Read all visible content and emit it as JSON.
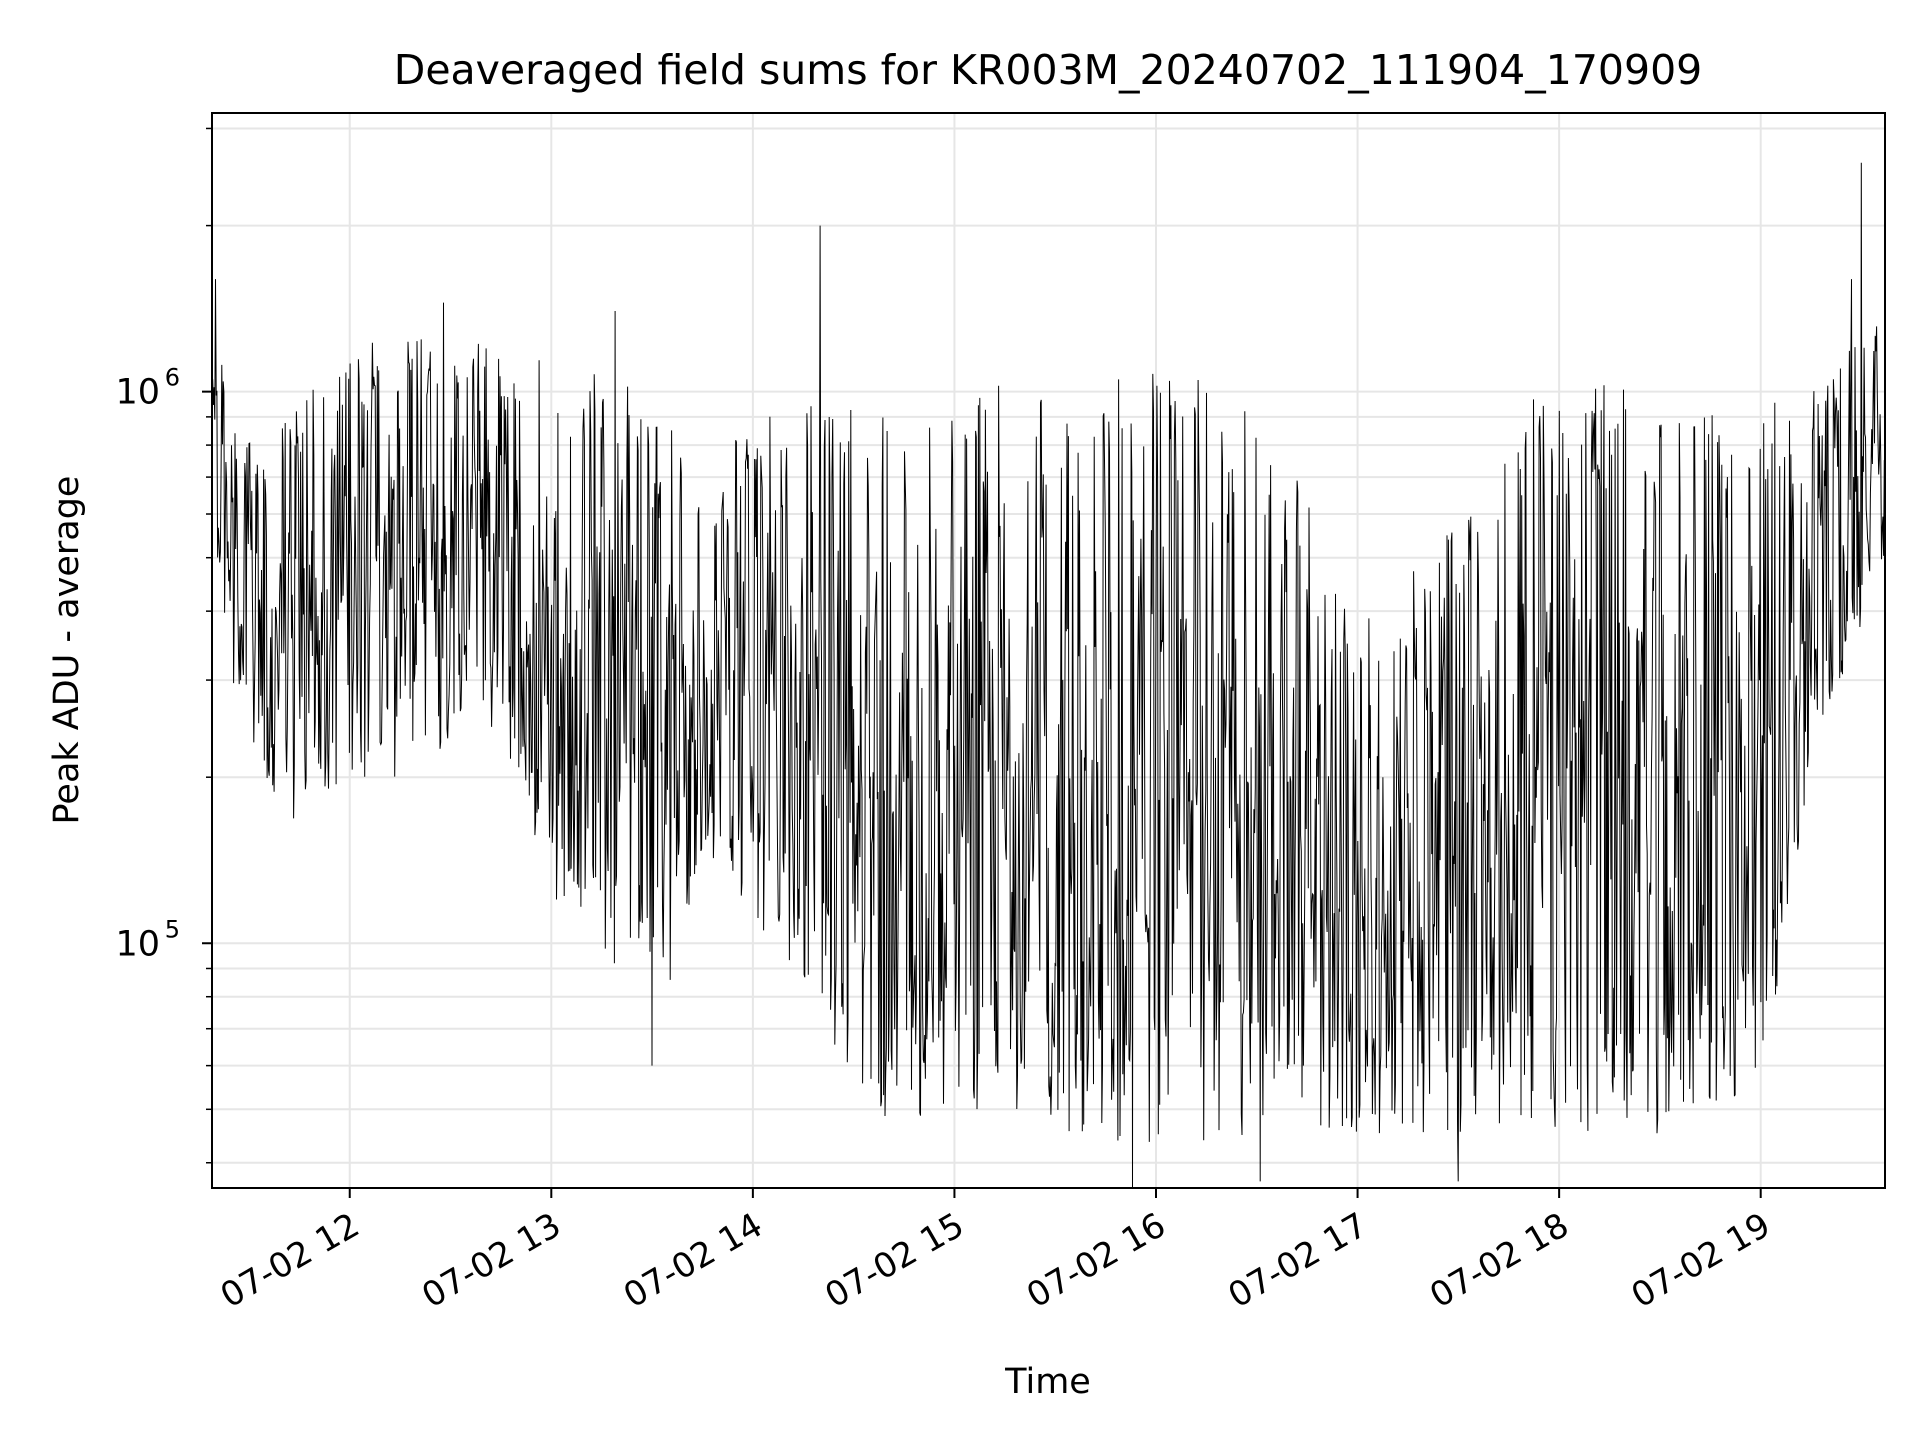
{
  "chart_data": {
    "type": "line",
    "title": "Deaveraged field sums for KR003M_20240702_111904_170909",
    "xlabel": "Time",
    "ylabel": "Peak ADU - average",
    "xlim": [
      "2024-07-02T11:19",
      "2024-07-02T19:37"
    ],
    "ylim": [
      36000,
      3200000
    ],
    "yscale": "log",
    "grid": true,
    "line_color": "#000000",
    "x_ticks": [
      {
        "t": "2024-07-02T12:00",
        "label": "07-02 12"
      },
      {
        "t": "2024-07-02T13:00",
        "label": "07-02 13"
      },
      {
        "t": "2024-07-02T14:00",
        "label": "07-02 14"
      },
      {
        "t": "2024-07-02T15:00",
        "label": "07-02 15"
      },
      {
        "t": "2024-07-02T16:00",
        "label": "07-02 16"
      },
      {
        "t": "2024-07-02T17:00",
        "label": "07-02 17"
      },
      {
        "t": "2024-07-02T18:00",
        "label": "07-02 18"
      },
      {
        "t": "2024-07-02T19:00",
        "label": "07-02 19"
      }
    ],
    "y_ticks": [
      {
        "value": 100000,
        "base": "10",
        "exp": "5"
      },
      {
        "value": 1000000,
        "base": "10",
        "exp": "6"
      }
    ],
    "envelope": [
      {
        "t": "2024-07-02T11:19",
        "low": 600000,
        "high": 1500000
      },
      {
        "t": "2024-07-02T11:25",
        "low": 300000,
        "high": 900000
      },
      {
        "t": "2024-07-02T11:35",
        "low": 200000,
        "high": 800000
      },
      {
        "t": "2024-07-02T11:45",
        "low": 150000,
        "high": 1000000
      },
      {
        "t": "2024-07-02T12:00",
        "low": 200000,
        "high": 1200000
      },
      {
        "t": "2024-07-02T12:20",
        "low": 200000,
        "high": 1300000
      },
      {
        "t": "2024-07-02T12:40",
        "low": 250000,
        "high": 1250000
      },
      {
        "t": "2024-07-02T13:00",
        "low": 120000,
        "high": 1200000
      },
      {
        "t": "2024-07-02T13:20",
        "low": 90000,
        "high": 1100000
      },
      {
        "t": "2024-07-02T13:35",
        "low": 80000,
        "high": 900000
      },
      {
        "t": "2024-07-02T13:45",
        "low": 150000,
        "high": 600000
      },
      {
        "t": "2024-07-02T14:00",
        "low": 110000,
        "high": 1000000
      },
      {
        "t": "2024-07-02T14:20",
        "low": 80000,
        "high": 1000000
      },
      {
        "t": "2024-07-02T14:30",
        "low": 45000,
        "high": 1000000
      },
      {
        "t": "2024-07-02T15:00",
        "low": 50000,
        "high": 1050000
      },
      {
        "t": "2024-07-02T15:30",
        "low": 45000,
        "high": 1000000
      },
      {
        "t": "2024-07-02T16:00",
        "low": 43000,
        "high": 1100000
      },
      {
        "t": "2024-07-02T16:30",
        "low": 45000,
        "high": 1000000
      },
      {
        "t": "2024-07-02T17:00",
        "low": 45000,
        "high": 400000
      },
      {
        "t": "2024-07-02T17:30",
        "low": 45000,
        "high": 600000
      },
      {
        "t": "2024-07-02T17:50",
        "low": 45000,
        "high": 1000000
      },
      {
        "t": "2024-07-02T18:30",
        "low": 45000,
        "high": 1100000
      },
      {
        "t": "2024-07-02T19:00",
        "low": 55000,
        "high": 1000000
      },
      {
        "t": "2024-07-02T19:15",
        "low": 200000,
        "high": 1000000
      },
      {
        "t": "2024-07-02T19:37",
        "low": 500000,
        "high": 1400000
      }
    ],
    "spikes": [
      {
        "t": "2024-07-02T14:20",
        "value": 2000000
      },
      {
        "t": "2024-07-02T19:30",
        "value": 2600000
      },
      {
        "t": "2024-07-02T11:20",
        "value": 1600000
      },
      {
        "t": "2024-07-02T19:27",
        "value": 1600000
      },
      {
        "t": "2024-07-02T12:28",
        "value": 1450000
      },
      {
        "t": "2024-07-02T13:19",
        "value": 1400000
      },
      {
        "t": "2024-07-02T15:53",
        "value": 36000
      },
      {
        "t": "2024-07-02T16:31",
        "value": 37000
      },
      {
        "t": "2024-07-02T17:30",
        "value": 37000
      },
      {
        "t": "2024-07-02T13:30",
        "value": 60000
      }
    ]
  }
}
